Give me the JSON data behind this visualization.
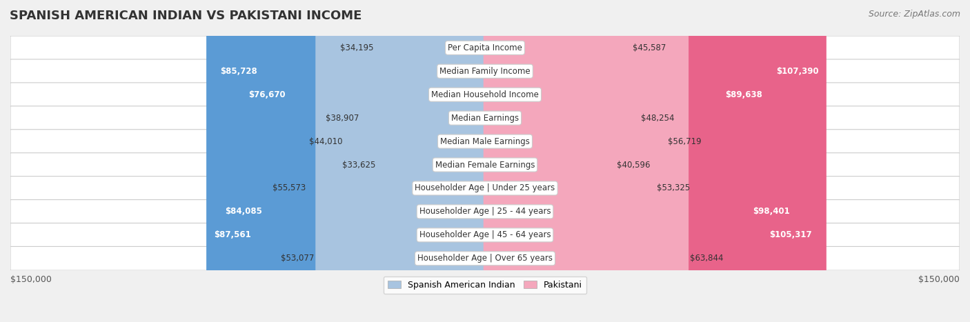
{
  "title": "SPANISH AMERICAN INDIAN VS PAKISTANI INCOME",
  "source": "Source: ZipAtlas.com",
  "categories": [
    "Per Capita Income",
    "Median Family Income",
    "Median Household Income",
    "Median Earnings",
    "Median Male Earnings",
    "Median Female Earnings",
    "Householder Age | Under 25 years",
    "Householder Age | 25 - 44 years",
    "Householder Age | 45 - 64 years",
    "Householder Age | Over 65 years"
  ],
  "spanish_values": [
    34195,
    85728,
    76670,
    38907,
    44010,
    33625,
    55573,
    84085,
    87561,
    53077
  ],
  "pakistani_values": [
    45587,
    107390,
    89638,
    48254,
    56719,
    40596,
    53325,
    98401,
    105317,
    63844
  ],
  "spanish_labels": [
    "$34,195",
    "$85,728",
    "$76,670",
    "$38,907",
    "$44,010",
    "$33,625",
    "$55,573",
    "$84,085",
    "$87,561",
    "$53,077"
  ],
  "pakistani_labels": [
    "$45,587",
    "$107,390",
    "$89,638",
    "$48,254",
    "$56,719",
    "$40,596",
    "$53,325",
    "$98,401",
    "$105,317",
    "$63,844"
  ],
  "spanish_color_light": "#a8c4e0",
  "spanish_color_dark": "#5b9bd5",
  "pakistani_color_light": "#f4a7bc",
  "pakistani_color_dark": "#e8638a",
  "max_value": 150000,
  "x_label_left": "$150,000",
  "x_label_right": "$150,000",
  "background_color": "#f0f0f0",
  "row_bg_color": "#f9f9f9",
  "title_fontsize": 13,
  "source_fontsize": 9,
  "label_fontsize": 8.5,
  "category_fontsize": 8.5
}
